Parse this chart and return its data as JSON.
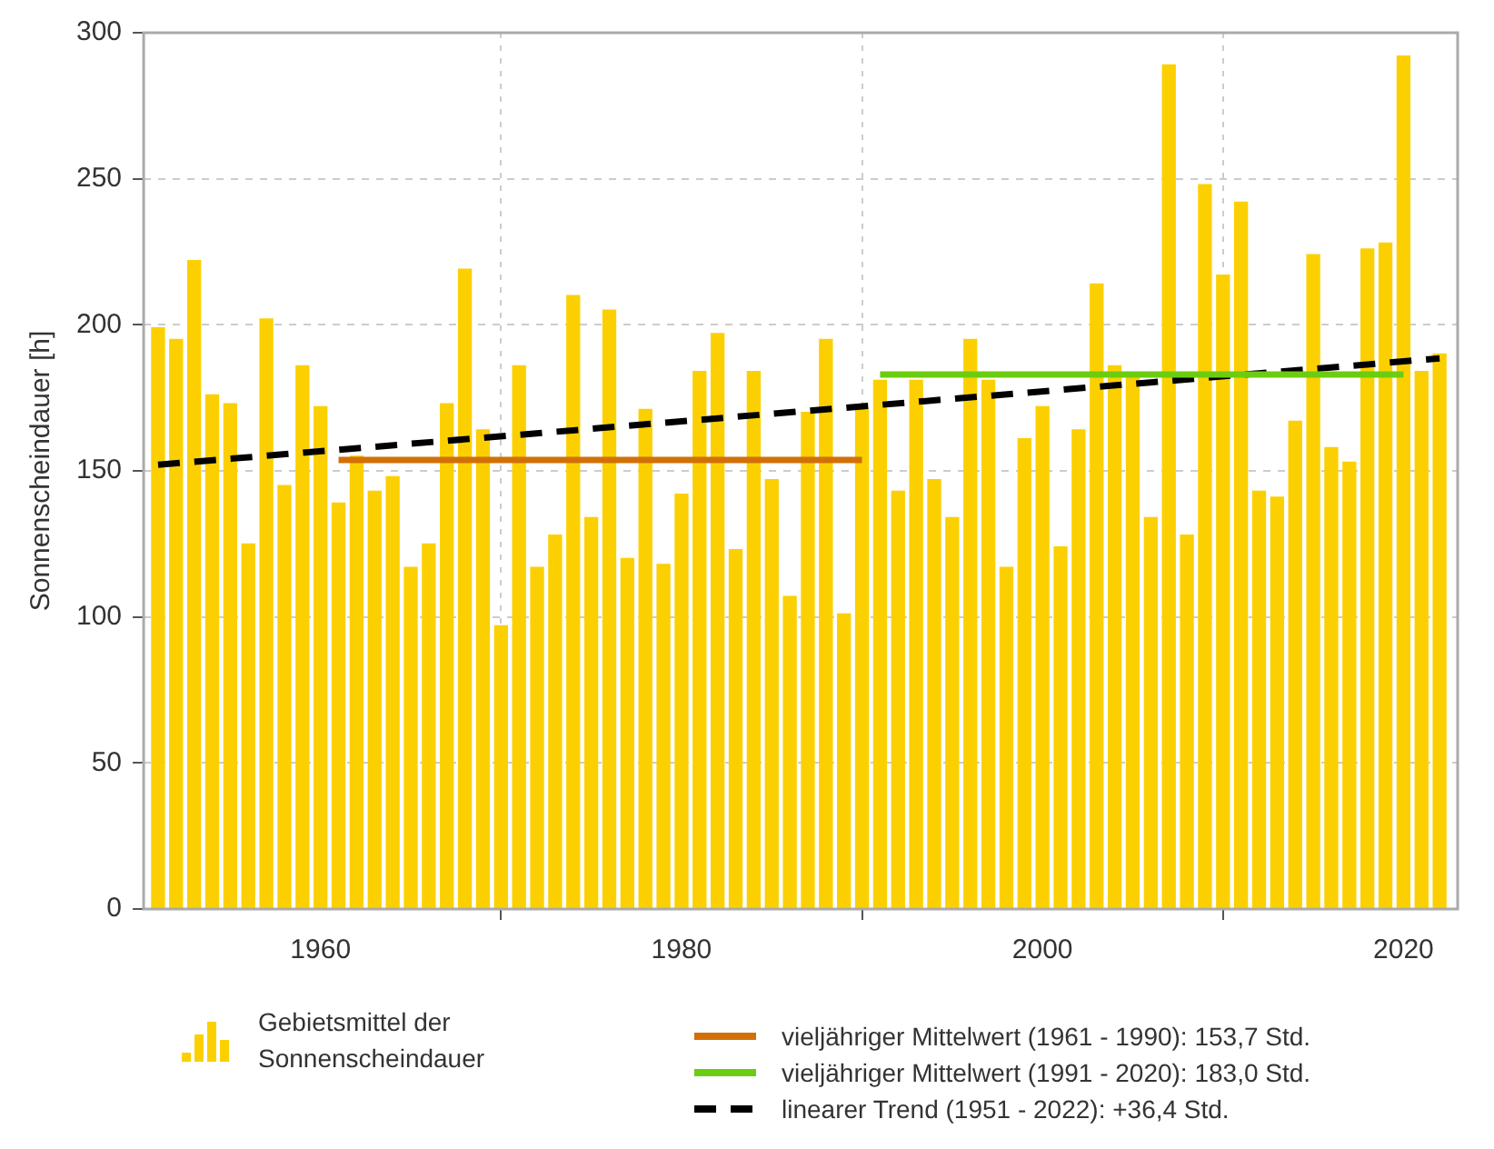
{
  "chart_data": {
    "type": "bar",
    "ylabel": "Sonnenscheindauer [h]",
    "x": [
      1951,
      1952,
      1953,
      1954,
      1955,
      1956,
      1957,
      1958,
      1959,
      1960,
      1961,
      1962,
      1963,
      1964,
      1965,
      1966,
      1967,
      1968,
      1969,
      1970,
      1971,
      1972,
      1973,
      1974,
      1975,
      1976,
      1977,
      1978,
      1979,
      1980,
      1981,
      1982,
      1983,
      1984,
      1985,
      1986,
      1987,
      1988,
      1989,
      1990,
      1991,
      1992,
      1993,
      1994,
      1995,
      1996,
      1997,
      1998,
      1999,
      2000,
      2001,
      2002,
      2003,
      2004,
      2005,
      2006,
      2007,
      2008,
      2009,
      2010,
      2011,
      2012,
      2013,
      2014,
      2015,
      2016,
      2017,
      2018,
      2019,
      2020,
      2021,
      2022
    ],
    "xlim": [
      1950.2,
      2023
    ],
    "xticks": [
      1960,
      1980,
      2000,
      2020
    ],
    "ylim": [
      0,
      300
    ],
    "yticks": [
      0,
      50,
      100,
      150,
      200,
      250,
      300
    ],
    "grid": true,
    "legend": "bottom",
    "series": [
      {
        "name": "Gebietsmittel der Sonnenscheindauer",
        "color": "#fcd000",
        "values": [
          199,
          195,
          222,
          176,
          173,
          125,
          202,
          145,
          186,
          172,
          139,
          155,
          143,
          148,
          117,
          125,
          173,
          219,
          164,
          97,
          186,
          117,
          128,
          210,
          134,
          205,
          120,
          171,
          118,
          142,
          184,
          197,
          123,
          184,
          147,
          107,
          170,
          195,
          101,
          171,
          181,
          143,
          181,
          147,
          134,
          195,
          181,
          117,
          161,
          172,
          124,
          164,
          214,
          186,
          182,
          134,
          289,
          128,
          248,
          217,
          242,
          143,
          141,
          167,
          224,
          158,
          153,
          226,
          228,
          292,
          184,
          190
        ]
      },
      {
        "name": "vieljähriger Mittelwert (1961 - 1990): 153,7 Std.",
        "type": "line",
        "color": "#d27008",
        "line_style": "solid",
        "x": [
          1961,
          1990
        ],
        "values": [
          153.7,
          153.7
        ]
      },
      {
        "name": "vieljähriger Mittelwert (1991 - 2020): 183,0 Std.",
        "type": "line",
        "color": "#6ccc10",
        "line_style": "solid",
        "x": [
          1991,
          2020
        ],
        "values": [
          183.0,
          183.0
        ]
      },
      {
        "name": "linearer Trend (1951 - 2022): +36,4 Std.",
        "type": "line",
        "color": "#000000",
        "line_style": "dashed",
        "x": [
          1951,
          2022
        ],
        "values": [
          152.1,
          188.5
        ]
      }
    ]
  }
}
